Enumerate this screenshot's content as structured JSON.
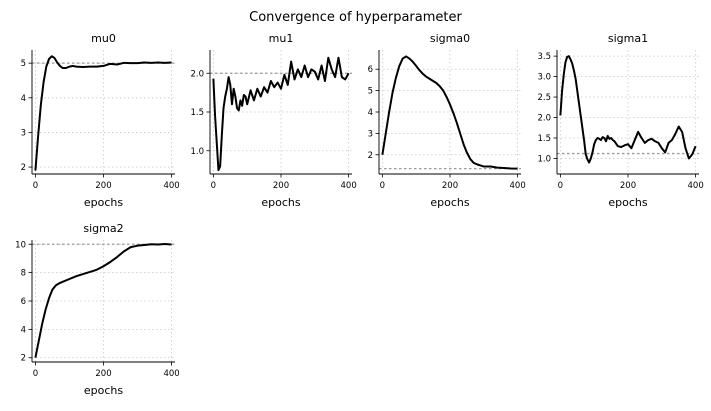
{
  "figure": {
    "title": "Convergence of hyperparameter"
  },
  "chart_data": [
    {
      "type": "line",
      "title": "mu0",
      "xlabel": "epochs",
      "ylabel": "",
      "xlim": [
        -10,
        410
      ],
      "ylim": [
        1.8,
        5.38
      ],
      "xticks": [
        0,
        200,
        400
      ],
      "yticks": [
        2,
        3,
        4,
        5
      ],
      "ytick_labels": [
        "2",
        "3",
        "4",
        "5"
      ],
      "grid": true,
      "target": 5.0,
      "x": [
        0,
        8,
        16,
        24,
        32,
        40,
        48,
        56,
        64,
        72,
        80,
        90,
        100,
        110,
        120,
        140,
        160,
        180,
        200,
        220,
        240,
        260,
        280,
        300,
        320,
        340,
        360,
        380,
        400
      ],
      "y": [
        1.9,
        2.9,
        3.8,
        4.45,
        4.9,
        5.12,
        5.2,
        5.15,
        5.02,
        4.92,
        4.86,
        4.86,
        4.9,
        4.92,
        4.9,
        4.89,
        4.9,
        4.9,
        4.92,
        4.98,
        4.96,
        5.01,
        5.0,
        5.0,
        5.02,
        5.01,
        5.02,
        5.01,
        5.02
      ]
    },
    {
      "type": "line",
      "title": "mu1",
      "xlabel": "epochs",
      "ylabel": "",
      "xlim": [
        -10,
        410
      ],
      "ylim": [
        0.7,
        2.3
      ],
      "xticks": [
        0,
        200,
        400
      ],
      "yticks": [
        1.0,
        1.5,
        2.0
      ],
      "ytick_labels": [
        "1.0",
        "1.5",
        "2.0"
      ],
      "grid": true,
      "target": 2.0,
      "x": [
        0,
        5,
        10,
        15,
        20,
        25,
        30,
        35,
        40,
        45,
        50,
        55,
        60,
        65,
        70,
        75,
        80,
        85,
        90,
        95,
        100,
        110,
        120,
        130,
        140,
        150,
        160,
        170,
        180,
        190,
        200,
        210,
        220,
        230,
        240,
        250,
        260,
        270,
        280,
        290,
        300,
        310,
        320,
        330,
        340,
        350,
        360,
        370,
        380,
        390,
        400
      ],
      "y": [
        1.93,
        1.45,
        1.1,
        0.75,
        0.8,
        1.2,
        1.55,
        1.7,
        1.8,
        1.95,
        1.85,
        1.6,
        1.8,
        1.7,
        1.55,
        1.52,
        1.65,
        1.58,
        1.72,
        1.7,
        1.6,
        1.78,
        1.65,
        1.8,
        1.7,
        1.82,
        1.75,
        1.9,
        1.82,
        1.88,
        1.8,
        1.98,
        1.85,
        2.15,
        1.92,
        2.05,
        1.95,
        2.1,
        1.95,
        2.05,
        2.02,
        1.92,
        2.1,
        1.9,
        2.2,
        2.05,
        1.95,
        2.2,
        1.95,
        1.92,
        2.0
      ]
    },
    {
      "type": "line",
      "title": "sigma0",
      "xlabel": "epochs",
      "ylabel": "",
      "xlim": [
        -10,
        410
      ],
      "ylim": [
        1.1,
        6.9
      ],
      "xticks": [
        0,
        200,
        400
      ],
      "yticks": [
        2,
        3,
        4,
        5,
        6
      ],
      "ytick_labels": [
        "2",
        "3",
        "4",
        "5",
        "6"
      ],
      "grid": true,
      "target": 1.35,
      "x": [
        0,
        10,
        20,
        30,
        40,
        50,
        60,
        70,
        80,
        90,
        100,
        110,
        120,
        130,
        140,
        150,
        160,
        170,
        180,
        190,
        200,
        210,
        220,
        230,
        240,
        250,
        260,
        270,
        280,
        290,
        300,
        320,
        340,
        360,
        380,
        400
      ],
      "y": [
        2.0,
        3.0,
        4.0,
        4.9,
        5.6,
        6.15,
        6.5,
        6.6,
        6.5,
        6.35,
        6.15,
        5.95,
        5.78,
        5.65,
        5.55,
        5.45,
        5.35,
        5.2,
        5.0,
        4.7,
        4.35,
        3.95,
        3.5,
        3.0,
        2.5,
        2.1,
        1.8,
        1.62,
        1.55,
        1.5,
        1.45,
        1.45,
        1.4,
        1.38,
        1.36,
        1.35
      ]
    },
    {
      "type": "line",
      "title": "sigma1",
      "xlabel": "epochs",
      "ylabel": "",
      "xlim": [
        -10,
        410
      ],
      "ylim": [
        0.62,
        3.65
      ],
      "xticks": [
        0,
        200,
        400
      ],
      "yticks": [
        1.0,
        1.5,
        2.0,
        2.5,
        3.0,
        3.5
      ],
      "ytick_labels": [
        "1.0",
        "1.5",
        "2.0",
        "2.5",
        "3.0",
        "3.5"
      ],
      "grid": true,
      "target": 1.12,
      "x": [
        0,
        5,
        10,
        15,
        20,
        25,
        30,
        35,
        40,
        45,
        50,
        55,
        60,
        65,
        70,
        75,
        80,
        85,
        90,
        95,
        100,
        105,
        110,
        115,
        120,
        125,
        130,
        135,
        140,
        145,
        150,
        155,
        160,
        170,
        180,
        190,
        200,
        210,
        220,
        230,
        240,
        250,
        260,
        270,
        280,
        290,
        300,
        310,
        320,
        330,
        340,
        350,
        360,
        370,
        380,
        390,
        400
      ],
      "y": [
        2.05,
        2.65,
        3.05,
        3.35,
        3.48,
        3.5,
        3.42,
        3.32,
        3.15,
        2.95,
        2.65,
        2.35,
        2.05,
        1.75,
        1.45,
        1.1,
        0.98,
        0.9,
        1.0,
        1.15,
        1.35,
        1.45,
        1.5,
        1.48,
        1.45,
        1.52,
        1.5,
        1.42,
        1.55,
        1.48,
        1.5,
        1.45,
        1.42,
        1.3,
        1.28,
        1.32,
        1.35,
        1.25,
        1.45,
        1.65,
        1.5,
        1.38,
        1.45,
        1.48,
        1.42,
        1.38,
        1.25,
        1.15,
        1.38,
        1.45,
        1.6,
        1.78,
        1.65,
        1.25,
        1.0,
        1.1,
        1.3
      ]
    },
    {
      "type": "line",
      "title": "sigma2",
      "xlabel": "epochs",
      "ylabel": "",
      "xlim": [
        -10,
        410
      ],
      "ylim": [
        1.7,
        10.3
      ],
      "xticks": [
        0,
        200,
        400
      ],
      "yticks": [
        2,
        4,
        6,
        8,
        10
      ],
      "ytick_labels": [
        "2",
        "4",
        "6",
        "8",
        "10"
      ],
      "grid": true,
      "target": 10.0,
      "x": [
        0,
        10,
        20,
        30,
        40,
        50,
        60,
        70,
        80,
        100,
        120,
        140,
        160,
        180,
        200,
        220,
        240,
        260,
        280,
        300,
        320,
        340,
        360,
        380,
        400
      ],
      "y": [
        2.0,
        3.2,
        4.4,
        5.4,
        6.2,
        6.8,
        7.1,
        7.25,
        7.35,
        7.55,
        7.75,
        7.9,
        8.05,
        8.2,
        8.45,
        8.75,
        9.1,
        9.5,
        9.8,
        9.9,
        9.95,
        10.0,
        9.98,
        10.02,
        9.98
      ]
    }
  ]
}
